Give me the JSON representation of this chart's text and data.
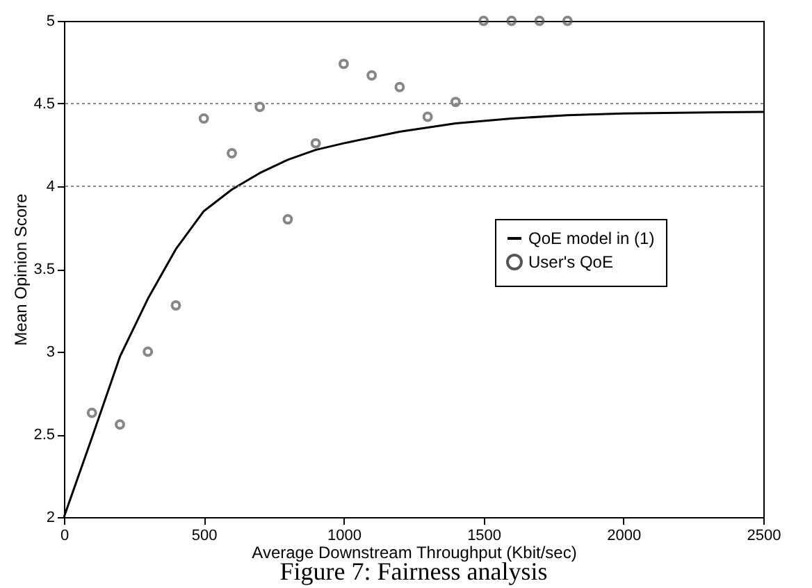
{
  "chart_data": {
    "type": "scatter",
    "xlabel": "Average Downstream Throughput (Kbit/sec)",
    "ylabel": "Mean Opinion Score",
    "annotations": [
      "Figure 7: Fairness analysis"
    ],
    "xlim": [
      0,
      2500
    ],
    "xticks": [
      0,
      500,
      1000,
      1500,
      2000,
      2500
    ],
    "ylim": [
      2,
      5
    ],
    "yticks": [
      2,
      2.5,
      3,
      3.5,
      4,
      4.5,
      5
    ],
    "legend": "right",
    "marker": "circle",
    "line_style": "solid",
    "ref_lines": [
      {
        "axis": "y",
        "value": 4,
        "label": null,
        "line_style": "dotted",
        "color": "#888888"
      },
      {
        "axis": "y",
        "value": 4.5,
        "label": null,
        "line_style": "dotted",
        "color": "#888888"
      }
    ],
    "series": [
      {
        "name": "QoE model in (1)",
        "type": "line",
        "marker": "none",
        "color": "#000000",
        "x": [
          0,
          100,
          200,
          300,
          400,
          500,
          600,
          700,
          800,
          900,
          1000,
          1200,
          1400,
          1600,
          1800,
          2000,
          2500
        ],
        "values": [
          2,
          2.48,
          2.97,
          3.32,
          3.62,
          3.85,
          3.98,
          4.08,
          4.16,
          4.22,
          4.26,
          4.33,
          4.38,
          4.41,
          4.43,
          4.44,
          4.45
        ]
      },
      {
        "name": "User's QoE",
        "color": "#555555",
        "x": [
          100,
          200,
          300,
          400,
          500,
          600,
          700,
          800,
          900,
          1000,
          1100,
          1200,
          1300,
          1400,
          1500,
          1600,
          1700,
          1800
        ],
        "values": [
          2.63,
          2.56,
          3.0,
          3.28,
          4.41,
          4.2,
          4.48,
          3.8,
          4.26,
          4.74,
          4.67,
          4.6,
          4.42,
          4.51,
          5,
          5,
          5,
          5
        ]
      }
    ]
  }
}
